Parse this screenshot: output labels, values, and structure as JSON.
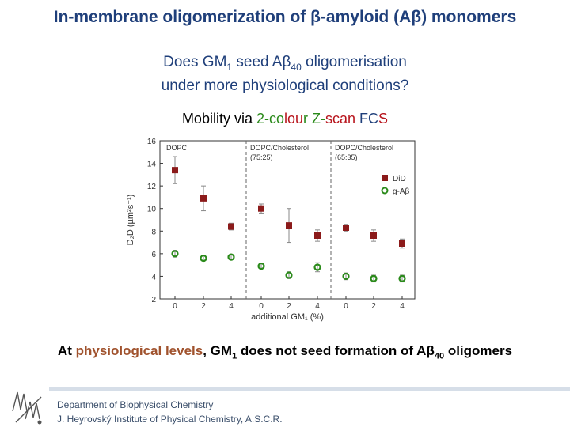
{
  "slide": {
    "title": "In-membrane oligomerization of β-amyloid (Aβ) monomers",
    "question_line1_a": "Does GM",
    "question_line1_sub": "1",
    "question_line1_b": " seed Aβ",
    "question_line1_sub2": "40",
    "question_line1_c": " oligomerisation",
    "question_line2": "under more physiological conditions?",
    "method_prefix": "Mobility via ",
    "method_part1": "2-co",
    "method_part2": "lou",
    "method_part3": "r Z-",
    "method_part4": "scan ",
    "method_part5": "FC",
    "method_part6": "S",
    "conclusion_a": "At ",
    "conclusion_hl": "physiological levels",
    "conclusion_b": ", GM",
    "conclusion_sub": "1",
    "conclusion_c": " does not seed formation of Aβ",
    "conclusion_sub2": "40",
    "conclusion_d": " oligomers",
    "footer_line1": "Department of Biophysical Chemistry",
    "footer_line2": "J. Heyrovský Institute of Physical Chemistry, A.S.C.R."
  },
  "chart_data": {
    "type": "scatter",
    "xlabel": "additional GM₁ (%)",
    "ylabel": "D₂D (µm²s⁻¹)",
    "ylim": [
      2,
      16
    ],
    "yticks": [
      "2",
      "4",
      "6",
      "8",
      "10",
      "12",
      "14",
      "16"
    ],
    "panels": [
      {
        "label": "DOPC",
        "x": [
          "0",
          "2",
          "4"
        ]
      },
      {
        "label": "DOPC/Cholesterol\n(75:25)",
        "x": [
          "0",
          "2",
          "4"
        ]
      },
      {
        "label": "DOPC/Cholesterol\n(65:35)",
        "x": [
          "0",
          "2",
          "4"
        ]
      }
    ],
    "legend_position": "top-right",
    "series": [
      {
        "name": "DiD",
        "color": "#8b1a1a",
        "marker": "square",
        "values": [
          13.4,
          10.9,
          8.4,
          10.0,
          8.5,
          7.6,
          8.3,
          7.6,
          6.9
        ],
        "errors": [
          1.2,
          1.1,
          0.3,
          0.4,
          1.5,
          0.5,
          0.3,
          0.5,
          0.4
        ]
      },
      {
        "name": "g-Aβ",
        "color": "#2a8a1a",
        "marker": "circle",
        "values": [
          6.0,
          5.6,
          5.7,
          4.9,
          4.1,
          4.8,
          4.0,
          3.8,
          3.8
        ],
        "errors": [
          0.3,
          0.2,
          0.2,
          0.2,
          0.3,
          0.4,
          0.3,
          0.3,
          0.3
        ]
      }
    ],
    "grid": false
  }
}
